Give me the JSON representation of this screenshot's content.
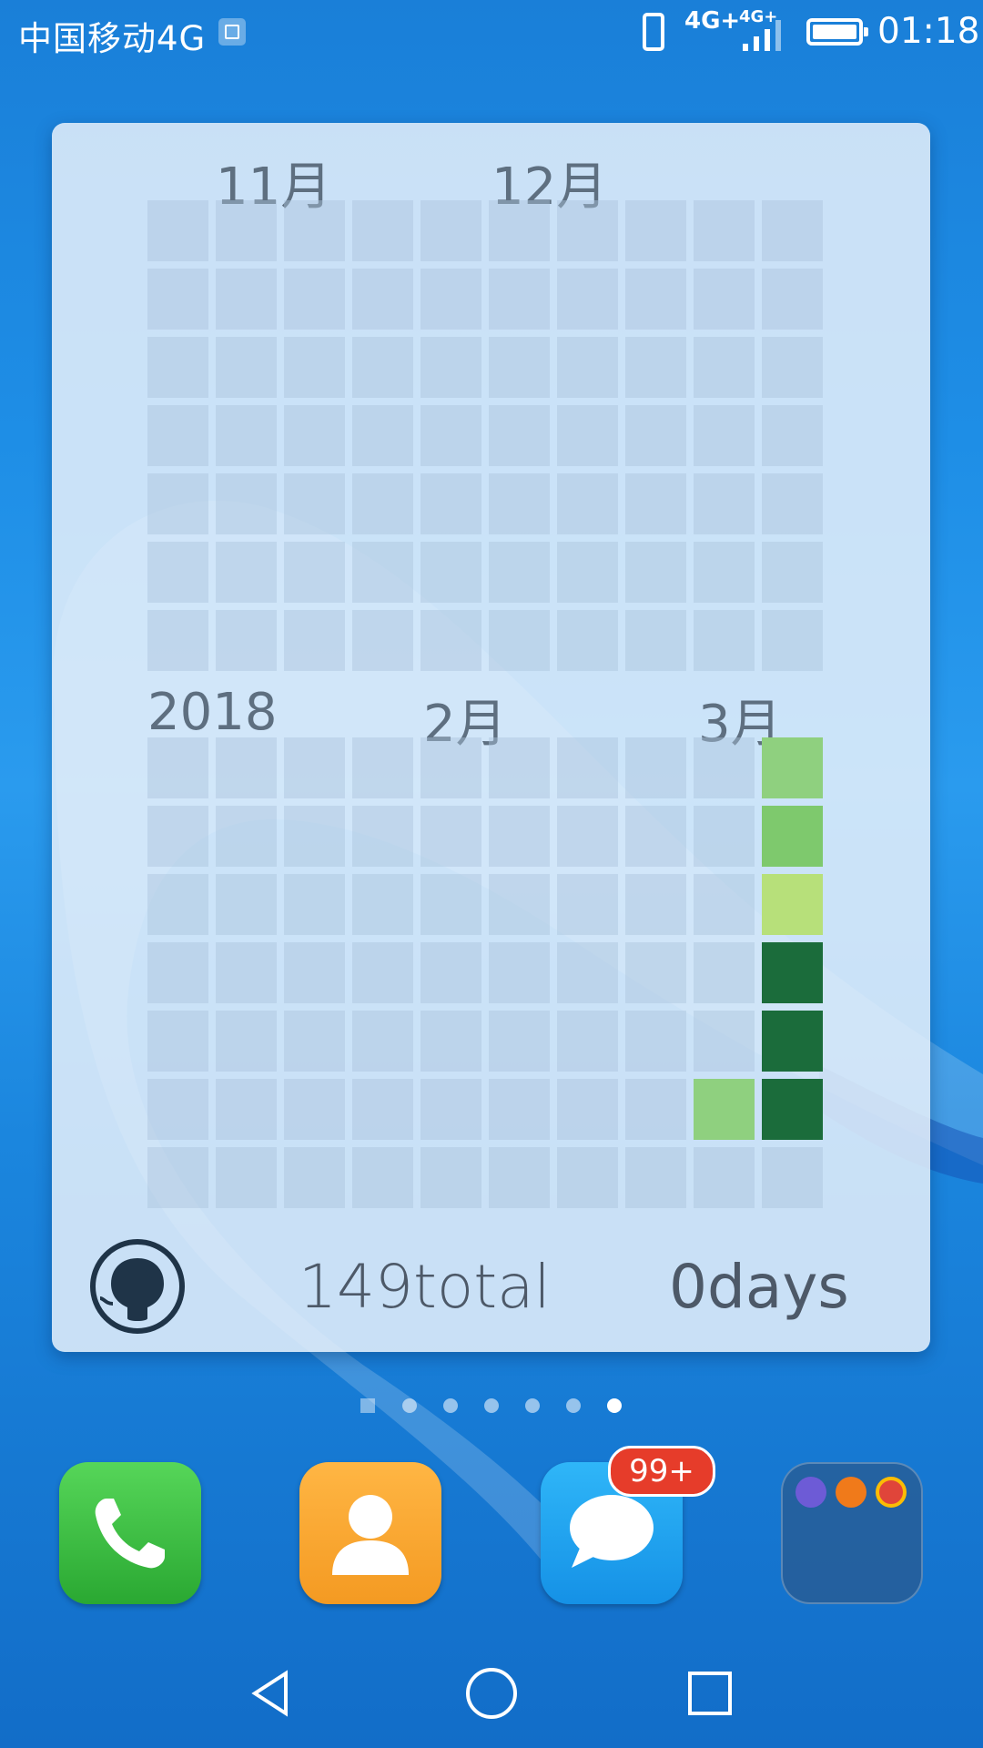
{
  "status_bar": {
    "carrier": "中国移动4G",
    "network_1": "4G+",
    "network_2": "4G+",
    "time": "01:18",
    "icons": [
      "image-icon",
      "vibrate-icon",
      "signal-icon",
      "battery-icon"
    ]
  },
  "widget": {
    "months_top": [
      "11月",
      "12月"
    ],
    "months_bottom": [
      "2018",
      "2月",
      "3月"
    ],
    "total": "149total",
    "days": "0days",
    "icon": "github-icon",
    "colors": {
      "empty": "#aac3dc",
      "level_1": "#b7e07a",
      "level_2": "#7ec96d",
      "level_4": "#1b6c3b"
    }
  },
  "page_indicator": {
    "count": 7,
    "active_index": 6
  },
  "dock": {
    "apps": [
      {
        "name": "phone",
        "icon": "phone-icon",
        "color": "#3fbe45"
      },
      {
        "name": "contacts",
        "icon": "contacts-icon",
        "color": "#f6a630"
      },
      {
        "name": "messages",
        "icon": "message-icon",
        "color": "#1ea5ef",
        "badge": "99+"
      },
      {
        "name": "folder",
        "icon": "folder-icon"
      }
    ]
  },
  "nav_bar": {
    "icons": [
      "back-icon",
      "home-icon",
      "recents-icon"
    ]
  }
}
